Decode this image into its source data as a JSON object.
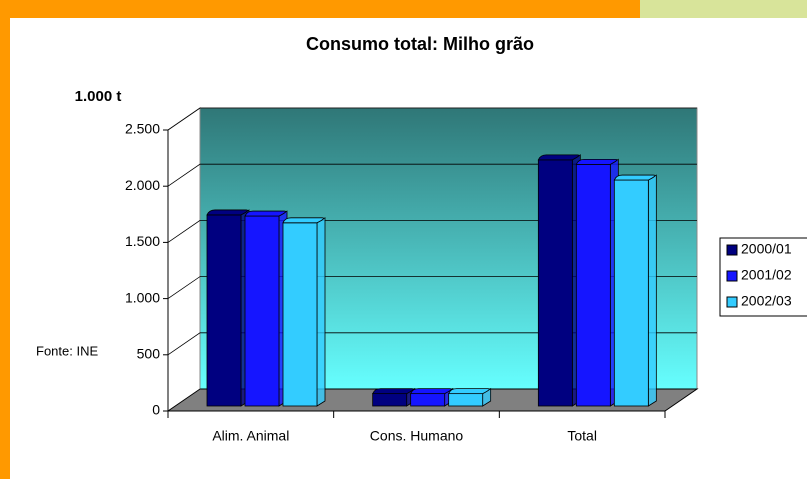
{
  "chart_data": {
    "type": "bar3d",
    "title": "Consumo total: Milho grão",
    "y_label": "1.000 t",
    "source": "Fonte: INE",
    "categories": [
      "Alim. Animal",
      "Cons. Humano",
      "Total"
    ],
    "series": [
      {
        "name": "2000/01",
        "color": "#000080",
        "values": [
          1700,
          110,
          2190
        ]
      },
      {
        "name": "2001/02",
        "color": "#1515ff",
        "values": [
          1690,
          110,
          2150
        ]
      },
      {
        "name": "2002/03",
        "color": "#33ccff",
        "values": [
          1630,
          110,
          2010
        ]
      }
    ],
    "ylim": [
      0,
      2500
    ],
    "yticks": [
      0,
      500,
      {
        "value": 1000,
        "label": "1.000"
      },
      {
        "value": 1500,
        "label": "1.500"
      },
      {
        "value": 2000,
        "label": "2.000"
      },
      {
        "value": 2500,
        "label": "2.500"
      }
    ],
    "grid": true,
    "legend": "right"
  }
}
